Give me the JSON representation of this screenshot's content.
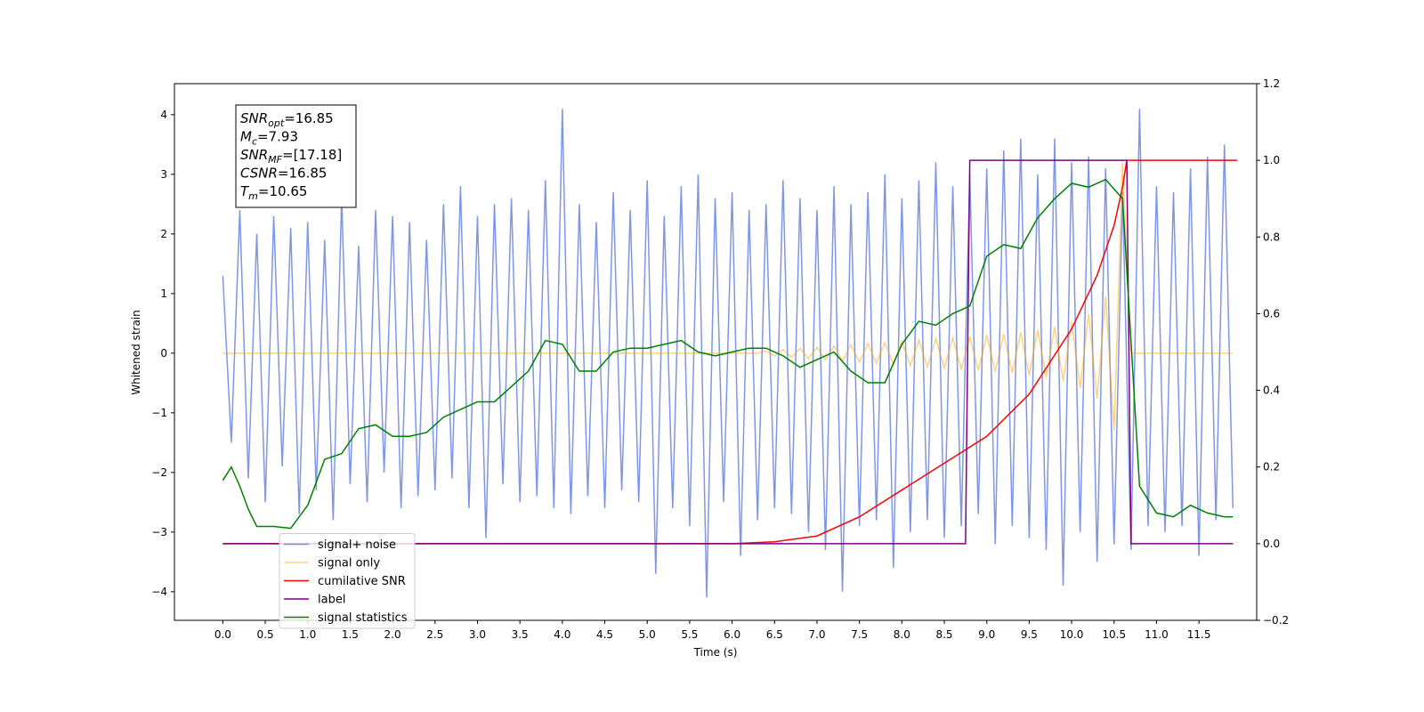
{
  "chart_data": {
    "type": "line",
    "xlabel": "Time (s)",
    "ylabel": "Whitened strain",
    "xlim": [
      -0.57,
      12.18
    ],
    "ylim": [
      -4.48,
      4.52
    ],
    "y2lim": [
      -0.2,
      1.2
    ],
    "xticks": [
      {
        "value": 0,
        "label": "0.0"
      },
      {
        "value": 0.5,
        "label": "0.5"
      },
      {
        "value": 1,
        "label": "1.0"
      },
      {
        "value": 1.5,
        "label": "1.5"
      },
      {
        "value": 2,
        "label": "2.0"
      },
      {
        "value": 2.5,
        "label": "2.5"
      },
      {
        "value": 3,
        "label": "3.0"
      },
      {
        "value": 3.5,
        "label": "3.5"
      },
      {
        "value": 4,
        "label": "4.0"
      },
      {
        "value": 4.5,
        "label": "4.5"
      },
      {
        "value": 5,
        "label": "5.0"
      },
      {
        "value": 5.5,
        "label": "5.5"
      },
      {
        "value": 6,
        "label": "6.0"
      },
      {
        "value": 6.5,
        "label": "6.5"
      },
      {
        "value": 7,
        "label": "7.0"
      },
      {
        "value": 7.5,
        "label": "7.5"
      },
      {
        "value": 8,
        "label": "8.0"
      },
      {
        "value": 8.5,
        "label": "8.5"
      },
      {
        "value": 9,
        "label": "9.0"
      },
      {
        "value": 9.5,
        "label": "9.5"
      },
      {
        "value": 10,
        "label": "10.0"
      },
      {
        "value": 10.5,
        "label": "10.5"
      },
      {
        "value": 11,
        "label": "11.0"
      },
      {
        "value": 11.5,
        "label": "11.5"
      }
    ],
    "yticks": [
      {
        "value": -4,
        "label": "−4"
      },
      {
        "value": -3,
        "label": "−3"
      },
      {
        "value": -2,
        "label": "−2"
      },
      {
        "value": -1,
        "label": "−1"
      },
      0,
      1,
      2,
      3,
      4
    ],
    "y2ticks": [
      {
        "value": -0.2,
        "label": "−0.2"
      },
      {
        "value": 0,
        "label": "0.0"
      },
      {
        "value": 0.2,
        "label": "0.2"
      },
      {
        "value": 0.4,
        "label": "0.4"
      },
      {
        "value": 0.6,
        "label": "0.6"
      },
      {
        "value": 0.8,
        "label": "0.8"
      },
      {
        "value": 1,
        "label": "1.0"
      },
      {
        "value": 1.2,
        "label": "1.2"
      }
    ],
    "legend": "lower left",
    "annotation": [
      {
        "symbol": "SNR",
        "subscript": "opt",
        "text": "=16.85"
      },
      {
        "symbol": "M",
        "subscript": "c",
        "text": "=7.93"
      },
      {
        "symbol": "SNR",
        "subscript": "MF",
        "text": "=[17.18]"
      },
      {
        "symbol": "CSNR",
        "text": "=16.85"
      },
      {
        "symbol": "T",
        "subscript": "m",
        "text": "=10.65"
      }
    ],
    "series": [
      {
        "name": "signal+ noise",
        "color": "#7890e6",
        "axis": "y",
        "x": [
          0,
          0.1,
          0.2,
          0.3,
          0.4,
          0.5,
          0.6,
          0.7,
          0.8,
          0.9,
          1,
          1.1,
          1.2,
          1.3,
          1.4,
          1.5,
          1.6,
          1.7,
          1.8,
          1.9,
          2,
          2.1,
          2.2,
          2.3,
          2.4,
          2.5,
          2.6,
          2.7,
          2.8,
          2.9,
          3,
          3.1,
          3.2,
          3.3,
          3.4,
          3.5,
          3.6,
          3.7,
          3.8,
          3.9,
          4,
          4.1,
          4.2,
          4.3,
          4.4,
          4.5,
          4.6,
          4.7,
          4.8,
          4.9,
          5,
          5.1,
          5.2,
          5.3,
          5.4,
          5.5,
          5.6,
          5.7,
          5.8,
          5.9,
          6,
          6.1,
          6.2,
          6.3,
          6.4,
          6.5,
          6.6,
          6.7,
          6.8,
          6.9,
          7,
          7.1,
          7.2,
          7.3,
          7.4,
          7.5,
          7.6,
          7.7,
          7.8,
          7.9,
          8,
          8.1,
          8.2,
          8.3,
          8.4,
          8.5,
          8.6,
          8.7,
          8.8,
          8.9,
          9,
          9.1,
          9.2,
          9.3,
          9.4,
          9.5,
          9.6,
          9.7,
          9.8,
          9.9,
          10,
          10.1,
          10.2,
          10.3,
          10.4,
          10.5,
          10.6,
          10.7,
          10.8,
          10.9,
          11,
          11.1,
          11.2,
          11.3,
          11.4,
          11.5,
          11.6,
          11.7,
          11.8,
          11.9
        ],
        "values": [
          1.3,
          -1.5,
          2.4,
          -2.1,
          2.0,
          -2.5,
          2.3,
          -1.9,
          2.1,
          -2.7,
          2.2,
          -2.3,
          1.9,
          -2.8,
          2.6,
          -2.2,
          1.8,
          -2.5,
          2.4,
          -2.0,
          2.3,
          -2.6,
          2.2,
          -2.4,
          1.9,
          -2.3,
          2.5,
          -2.1,
          2.8,
          -2.6,
          2.3,
          -3.1,
          2.5,
          -2.2,
          2.6,
          -2.5,
          2.4,
          -2.4,
          2.9,
          -2.6,
          4.1,
          -2.7,
          2.5,
          -2.4,
          2.2,
          -2.6,
          2.7,
          -2.3,
          2.4,
          -2.5,
          2.9,
          -3.7,
          2.3,
          -2.6,
          2.8,
          -2.9,
          3.0,
          -4.1,
          2.6,
          -2.5,
          2.7,
          -3.4,
          2.4,
          -2.8,
          2.5,
          -2.6,
          2.9,
          -2.7,
          2.6,
          -3.0,
          2.4,
          -3.3,
          2.8,
          -4.0,
          2.5,
          -2.9,
          2.7,
          -2.8,
          3.0,
          -3.6,
          2.6,
          -3.0,
          2.9,
          -2.8,
          3.2,
          -3.1,
          2.8,
          -2.9,
          3.0,
          -2.7,
          3.1,
          -3.2,
          3.4,
          -2.9,
          3.6,
          -3.1,
          3.0,
          -3.3,
          3.6,
          -3.9,
          3.2,
          -3.0,
          3.3,
          -3.5,
          3.1,
          -3.2,
          2.7,
          -3.3,
          4.1,
          -2.9,
          2.8,
          -3.0,
          2.7,
          -2.9,
          3.1,
          -3.4,
          3.3,
          -2.8,
          3.5,
          -2.6
        ]
      },
      {
        "name": "signal only",
        "color": "#ffa500",
        "axis": "y",
        "x": [
          0,
          0.1,
          0.2,
          0.3,
          0.4,
          0.5,
          0.6,
          0.7,
          0.8,
          0.9,
          1,
          1.1,
          1.2,
          1.3,
          1.4,
          1.5,
          1.6,
          1.7,
          1.8,
          1.9,
          2,
          2.1,
          2.2,
          2.3,
          2.4,
          2.5,
          2.6,
          2.7,
          2.8,
          2.9,
          3,
          3.1,
          3.2,
          3.3,
          3.4,
          3.5,
          3.6,
          3.7,
          3.8,
          3.9,
          4,
          4.1,
          4.2,
          4.3,
          4.4,
          4.5,
          4.6,
          4.7,
          4.8,
          4.9,
          5,
          5.1,
          5.2,
          5.3,
          5.4,
          5.5,
          5.6,
          5.7,
          5.8,
          5.9,
          6,
          6.1,
          6.2,
          6.3,
          6.4,
          6.5,
          6.6,
          6.7,
          6.8,
          6.9,
          7,
          7.1,
          7.2,
          7.3,
          7.4,
          7.5,
          7.6,
          7.7,
          7.8,
          7.9,
          8,
          8.1,
          8.2,
          8.3,
          8.4,
          8.5,
          8.6,
          8.7,
          8.8,
          8.9,
          9,
          9.1,
          9.2,
          9.3,
          9.4,
          9.5,
          9.6,
          9.7,
          9.8,
          9.9,
          10,
          10.1,
          10.2,
          10.3,
          10.4,
          10.5,
          10.6,
          10.7,
          10.8,
          10.9,
          11,
          11.1,
          11.2,
          11.3,
          11.4,
          11.5,
          11.6,
          11.7,
          11.8,
          11.9
        ],
        "values": [
          0,
          0,
          0,
          0,
          0,
          0,
          0,
          0,
          0,
          0,
          0,
          0,
          0,
          0,
          0,
          0,
          0,
          0,
          0,
          0,
          0,
          0,
          0,
          0,
          0,
          0,
          0,
          0,
          0,
          0,
          0,
          0,
          0,
          0,
          0,
          0,
          0,
          0,
          0,
          0,
          0,
          0,
          0,
          0,
          0,
          0,
          0,
          0,
          0,
          0,
          0,
          0,
          0,
          0,
          0,
          0,
          0,
          0,
          0,
          0,
          0,
          0,
          0,
          0,
          0.04,
          -0.05,
          0.06,
          -0.07,
          0.08,
          -0.09,
          0.1,
          -0.11,
          0.12,
          -0.13,
          0.14,
          -0.15,
          0.16,
          -0.17,
          0.18,
          -0.19,
          0.2,
          -0.21,
          0.22,
          -0.23,
          0.24,
          -0.25,
          0.26,
          -0.27,
          0.28,
          -0.29,
          0.3,
          -0.31,
          0.32,
          -0.33,
          0.35,
          -0.37,
          0.39,
          -0.41,
          0.44,
          -0.47,
          0.52,
          -0.58,
          0.66,
          -0.76,
          0.95,
          -1.3,
          3.2,
          0,
          0,
          0,
          0,
          0,
          0,
          0,
          0,
          0,
          0,
          0,
          0,
          0
        ]
      },
      {
        "name": "cumilative SNR",
        "color": "#ff0000",
        "axis": "y2",
        "x": [
          0,
          6,
          6.5,
          7,
          7.5,
          8,
          8.5,
          9,
          9.5,
          10,
          10.3,
          10.5,
          10.6,
          10.65,
          11.95
        ],
        "values": [
          0,
          0,
          0.005,
          0.02,
          0.07,
          0.14,
          0.21,
          0.28,
          0.39,
          0.56,
          0.7,
          0.83,
          0.93,
          1.0,
          1.0
        ]
      },
      {
        "name": "label",
        "color": "#800080",
        "axis": "y2",
        "x": [
          0,
          8.75,
          8.8,
          10.65,
          10.7,
          11.9
        ],
        "values": [
          0,
          0,
          1,
          1,
          0,
          0
        ]
      },
      {
        "name": "signal statistics",
        "color": "#008000",
        "axis": "y2",
        "x": [
          0,
          0.1,
          0.2,
          0.3,
          0.4,
          0.6,
          0.8,
          1,
          1.2,
          1.4,
          1.6,
          1.8,
          2,
          2.2,
          2.4,
          2.6,
          2.8,
          3,
          3.2,
          3.4,
          3.6,
          3.8,
          4,
          4.2,
          4.4,
          4.6,
          4.8,
          5,
          5.2,
          5.4,
          5.6,
          5.8,
          6,
          6.2,
          6.4,
          6.6,
          6.8,
          7,
          7.2,
          7.4,
          7.6,
          7.8,
          8,
          8.2,
          8.4,
          8.6,
          8.8,
          9,
          9.2,
          9.4,
          9.6,
          9.8,
          10,
          10.2,
          10.4,
          10.6,
          10.8,
          11,
          11.2,
          11.4,
          11.6,
          11.8,
          11.9
        ],
        "values": [
          0.165,
          0.2,
          0.15,
          0.09,
          0.045,
          0.045,
          0.04,
          0.1,
          0.22,
          0.235,
          0.3,
          0.31,
          0.28,
          0.28,
          0.29,
          0.33,
          0.35,
          0.37,
          0.37,
          0.41,
          0.45,
          0.53,
          0.52,
          0.45,
          0.45,
          0.5,
          0.51,
          0.51,
          0.52,
          0.53,
          0.5,
          0.49,
          0.5,
          0.51,
          0.51,
          0.49,
          0.46,
          0.48,
          0.5,
          0.45,
          0.42,
          0.42,
          0.52,
          0.58,
          0.57,
          0.6,
          0.62,
          0.75,
          0.78,
          0.77,
          0.85,
          0.9,
          0.94,
          0.93,
          0.95,
          0.9,
          0.15,
          0.08,
          0.07,
          0.1,
          0.08,
          0.07,
          0.07
        ]
      }
    ]
  }
}
